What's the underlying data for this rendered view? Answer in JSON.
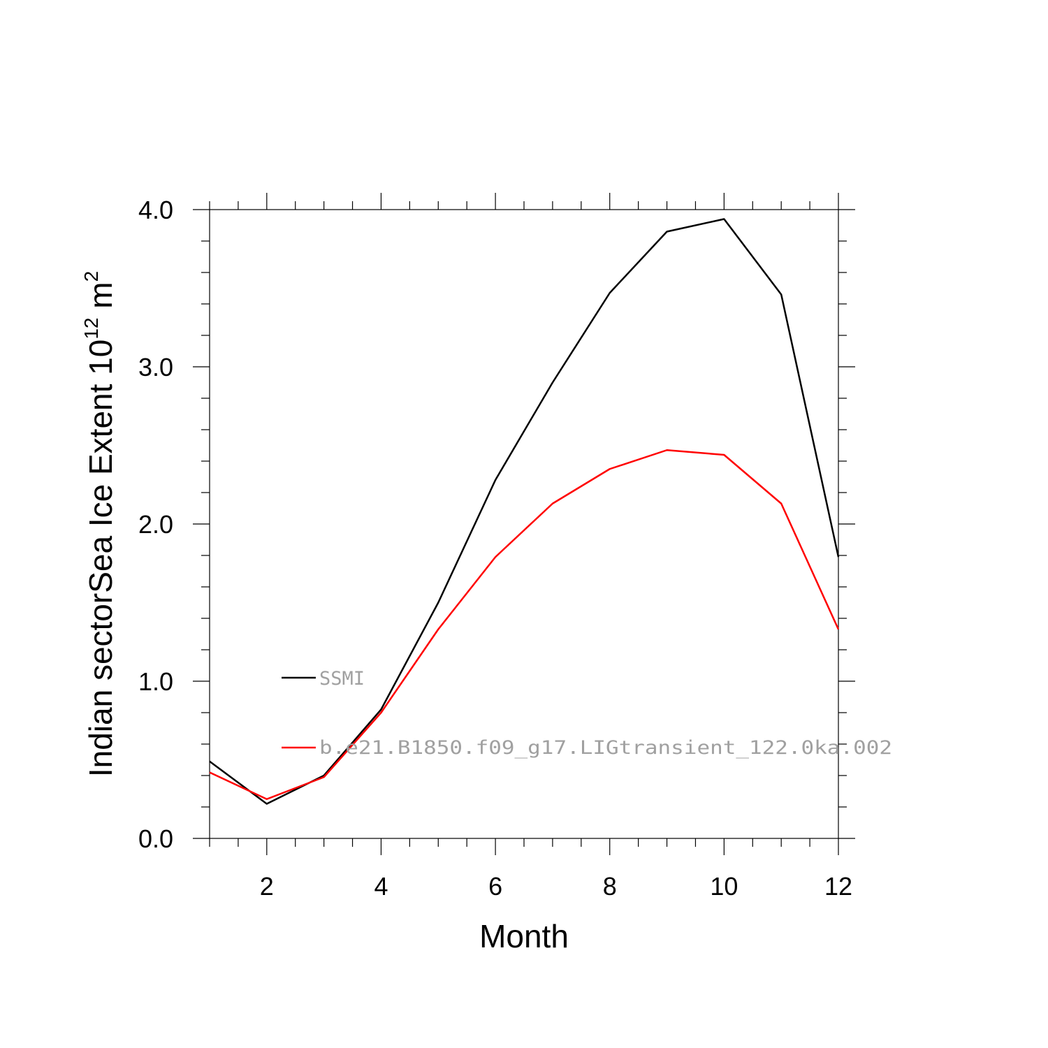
{
  "chart_data": {
    "type": "line",
    "xlabel": "Month",
    "ylabel": {
      "main": "Indian sectorSea Ice Extent 10",
      "sup1": "12",
      "unit": " m",
      "sup2": "2"
    },
    "xlim": [
      1,
      12
    ],
    "ylim": [
      0,
      4
    ],
    "x_ticks": [
      2,
      4,
      6,
      8,
      10,
      12
    ],
    "x_tick_labels": [
      "2",
      "4",
      "6",
      "8",
      "10",
      "12"
    ],
    "y_ticks": [
      0,
      1,
      2,
      3,
      4
    ],
    "y_tick_labels": [
      "0.0",
      "1.0",
      "2.0",
      "3.0",
      "4.0"
    ],
    "x": [
      1,
      2,
      3,
      4,
      5,
      6,
      7,
      8,
      9,
      10,
      11,
      12
    ],
    "series": [
      {
        "name": "SSMI",
        "color": "#000000",
        "values": [
          0.49,
          0.22,
          0.4,
          0.82,
          1.5,
          2.28,
          2.9,
          3.47,
          3.86,
          3.94,
          3.46,
          1.79
        ]
      },
      {
        "name": "b.e21.B1850.f09_g17.LIGtransient_122.0ka.002",
        "color": "#ff0000",
        "values": [
          0.42,
          0.25,
          0.39,
          0.8,
          1.33,
          1.79,
          2.13,
          2.35,
          2.47,
          2.44,
          2.13,
          1.33
        ]
      }
    ],
    "legend_position": "inside-left"
  }
}
